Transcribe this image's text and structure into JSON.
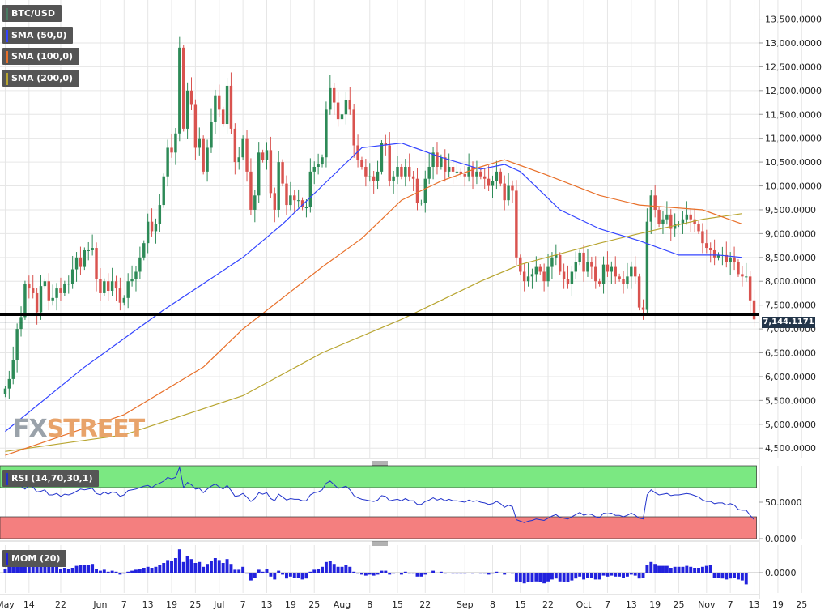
{
  "chart_data": {
    "type": "candlestick",
    "instrument": "BTC/USD",
    "price_axis": {
      "ticks": [
        "13,500.0000",
        "13,000.0000",
        "12,500.0000",
        "12,000.0000",
        "11,500.0000",
        "11,000.0000",
        "10,500.0000",
        "10,000.0000",
        "9,500.0000",
        "9,000.0000",
        "8,500.0000",
        "8,000.0000",
        "7,500.0000",
        "7,000.0000",
        "6,500.0000",
        "6,000.0000",
        "5,500.0000",
        "5,000.0000",
        "4,500.0000"
      ],
      "ylim": [
        4300,
        13900
      ]
    },
    "x_axis": {
      "start_date": "2019-05-08",
      "ticks": [
        {
          "label": "May",
          "date": "2019-05-08"
        },
        {
          "label": "14",
          "date": "2019-05-14"
        },
        {
          "label": "22",
          "date": "2019-05-22"
        },
        {
          "label": "Jun",
          "date": "2019-06-01"
        },
        {
          "label": "7",
          "date": "2019-06-07"
        },
        {
          "label": "13",
          "date": "2019-06-13"
        },
        {
          "label": "19",
          "date": "2019-06-19"
        },
        {
          "label": "25",
          "date": "2019-06-25"
        },
        {
          "label": "Jul",
          "date": "2019-07-01"
        },
        {
          "label": "7",
          "date": "2019-07-07"
        },
        {
          "label": "13",
          "date": "2019-07-13"
        },
        {
          "label": "19",
          "date": "2019-07-19"
        },
        {
          "label": "25",
          "date": "2019-07-25"
        },
        {
          "label": "Aug",
          "date": "2019-08-01"
        },
        {
          "label": "8",
          "date": "2019-08-08"
        },
        {
          "label": "15",
          "date": "2019-08-15"
        },
        {
          "label": "22",
          "date": "2019-08-22"
        },
        {
          "label": "Sep",
          "date": "2019-09-01"
        },
        {
          "label": "8",
          "date": "2019-09-08"
        },
        {
          "label": "15",
          "date": "2019-09-15"
        },
        {
          "label": "22",
          "date": "2019-09-22"
        },
        {
          "label": "Oct",
          "date": "2019-10-01"
        },
        {
          "label": "7",
          "date": "2019-10-07"
        },
        {
          "label": "13",
          "date": "2019-10-13"
        },
        {
          "label": "19",
          "date": "2019-10-19"
        },
        {
          "label": "25",
          "date": "2019-10-25"
        },
        {
          "label": "Nov",
          "date": "2019-11-01"
        },
        {
          "label": "7",
          "date": "2019-11-07"
        },
        {
          "label": "13",
          "date": "2019-11-13"
        },
        {
          "label": "19",
          "date": "2019-11-19"
        },
        {
          "label": "25",
          "date": "2019-11-25"
        }
      ]
    },
    "closes": [
      5750,
      5950,
      6350,
      7000,
      7250,
      7950,
      7850,
      7750,
      7350,
      7900,
      8000,
      7600,
      7650,
      7850,
      7750,
      7950,
      7950,
      8250,
      8500,
      8300,
      8650,
      8650,
      8700,
      8050,
      7750,
      8000,
      7800,
      8000,
      7850,
      7550,
      7650,
      8000,
      8050,
      8200,
      8500,
      8800,
      9250,
      9050,
      9200,
      9600,
      10200,
      10800,
      10700,
      11100,
      12900,
      11200,
      12000,
      11700,
      10800,
      11000,
      10300,
      10800,
      11350,
      11900,
      11600,
      11300,
      12100,
      11200,
      10500,
      10600,
      11000,
      10300,
      9500,
      9800,
      10700,
      10550,
      10750,
      9850,
      9500,
      10500,
      10050,
      9600,
      9800,
      9700,
      9700,
      9550,
      9550,
      10300,
      10400,
      10450,
      10600,
      11600,
      12050,
      11750,
      11400,
      11500,
      11800,
      11600,
      10850,
      10550,
      10400,
      10200,
      10200,
      10100,
      10300,
      10900,
      10850,
      10100,
      10200,
      10400,
      10200,
      10400,
      10200,
      10150,
      9650,
      9650,
      10150,
      10400,
      10700,
      10400,
      10600,
      10300,
      10400,
      10300,
      10300,
      10250,
      10200,
      10400,
      10200,
      10300,
      10200,
      10150,
      10000,
      10100,
      10300,
      10050,
      9700,
      10000,
      9900,
      8500,
      8200,
      8000,
      8100,
      8150,
      8300,
      8200,
      8000,
      8300,
      8500,
      8550,
      8200,
      8050,
      7950,
      8200,
      8400,
      8600,
      8200,
      8400,
      8300,
      8000,
      7950,
      8350,
      8200,
      8300,
      8100,
      8050,
      7950,
      8100,
      8300,
      8100,
      7450,
      7400,
      9250,
      9800,
      9500,
      9200,
      9300,
      9400,
      9100,
      9200,
      9200,
      9300,
      9400,
      9300,
      9200,
      9050,
      8800,
      8700,
      8650,
      8500,
      8550,
      8550,
      8400,
      8500,
      8400,
      8150,
      8100,
      8100,
      7600,
      7200
    ],
    "current_price": 7144.1171,
    "horizontal_line": 7300,
    "sma50": [
      [
        0,
        4850
      ],
      [
        20,
        6200
      ],
      [
        40,
        7400
      ],
      [
        60,
        8500
      ],
      [
        70,
        9200
      ],
      [
        80,
        10000
      ],
      [
        90,
        10800
      ],
      [
        100,
        10900
      ],
      [
        110,
        10600
      ],
      [
        120,
        10350
      ],
      [
        126,
        10450
      ],
      [
        130,
        10300
      ],
      [
        140,
        9500
      ],
      [
        150,
        9100
      ],
      [
        160,
        8850
      ],
      [
        170,
        8550
      ],
      [
        180,
        8550
      ],
      [
        186,
        8500
      ]
    ],
    "sma100": [
      [
        0,
        4350
      ],
      [
        30,
        5200
      ],
      [
        50,
        6200
      ],
      [
        60,
        7000
      ],
      [
        80,
        8300
      ],
      [
        90,
        8900
      ],
      [
        100,
        9700
      ],
      [
        110,
        10100
      ],
      [
        120,
        10400
      ],
      [
        126,
        10550
      ],
      [
        136,
        10250
      ],
      [
        150,
        9800
      ],
      [
        160,
        9600
      ],
      [
        176,
        9500
      ],
      [
        186,
        9200
      ]
    ],
    "sma200": [
      [
        0,
        4430
      ],
      [
        30,
        4780
      ],
      [
        60,
        5600
      ],
      [
        80,
        6500
      ],
      [
        100,
        7200
      ],
      [
        110,
        7600
      ],
      [
        120,
        8000
      ],
      [
        130,
        8350
      ],
      [
        150,
        8800
      ],
      [
        160,
        9000
      ],
      [
        176,
        9300
      ],
      [
        186,
        9420
      ]
    ],
    "rsi": {
      "levels": [
        30,
        70
      ],
      "ticks": [
        "50.0000",
        "0.0000"
      ],
      "values": [
        76,
        77,
        73,
        80,
        72,
        68,
        73,
        71,
        64,
        65,
        67,
        60,
        60,
        62,
        58,
        61,
        60,
        62,
        65,
        68,
        67,
        68,
        69,
        62,
        60,
        64,
        61,
        64,
        63,
        58,
        60,
        66,
        67,
        68,
        70,
        72,
        73,
        70,
        74,
        76,
        79,
        84,
        82,
        84,
        98,
        70,
        77,
        74,
        68,
        69,
        63,
        68,
        72,
        75,
        71,
        68,
        73,
        66,
        58,
        59,
        62,
        57,
        51,
        55,
        63,
        61,
        63,
        55,
        52,
        61,
        57,
        53,
        55,
        54,
        54,
        52,
        52,
        60,
        63,
        64,
        67,
        76,
        79,
        74,
        69,
        70,
        72,
        67,
        59,
        56,
        54,
        53,
        52,
        51,
        53,
        59,
        58,
        52,
        53,
        54,
        52,
        55,
        52,
        52,
        47,
        47,
        51,
        53,
        56,
        53,
        55,
        52,
        54,
        52,
        52,
        51,
        50,
        53,
        51,
        52,
        50,
        49,
        47,
        48,
        51,
        48,
        43,
        46,
        44,
        26,
        24,
        22,
        24,
        25,
        27,
        26,
        25,
        28,
        31,
        33,
        29,
        28,
        27,
        30,
        33,
        36,
        32,
        34,
        33,
        30,
        29,
        35,
        34,
        35,
        32,
        32,
        30,
        32,
        35,
        32,
        28,
        27,
        60,
        67,
        63,
        60,
        61,
        62,
        59,
        60,
        60,
        61,
        62,
        61,
        59,
        57,
        53,
        51,
        51,
        48,
        49,
        49,
        46,
        48,
        46,
        40,
        39,
        39,
        32,
        26
      ]
    },
    "mom": {
      "ticks": [
        "0.0000"
      ],
      "values": [
        0.4,
        0.6,
        0.8,
        1.0,
        1.2,
        1.3,
        1.1,
        1.1,
        0.9,
        1.0,
        1.0,
        0.7,
        0.6,
        0.6,
        0.4,
        0.5,
        0.4,
        0.5,
        0.7,
        0.8,
        0.8,
        0.8,
        0.9,
        0.4,
        0.2,
        0.3,
        0.1,
        0.2,
        0.1,
        -0.2,
        -0.1,
        0.1,
        0.2,
        0.3,
        0.4,
        0.5,
        0.6,
        0.5,
        0.6,
        0.8,
        1.0,
        1.3,
        1.2,
        1.5,
        2.4,
        1.1,
        1.7,
        1.4,
        1.0,
        1.1,
        0.6,
        0.9,
        1.2,
        1.5,
        1.3,
        1.0,
        1.4,
        0.9,
        0.3,
        0.3,
        0.6,
        -0.1,
        -0.8,
        -0.5,
        0.3,
        0.1,
        0.4,
        -0.4,
        -0.7,
        0.2,
        -0.2,
        -0.6,
        -0.4,
        -0.5,
        -0.5,
        -0.7,
        -0.6,
        0.1,
        0.3,
        0.4,
        0.6,
        1.1,
        1.2,
        0.9,
        0.6,
        0.6,
        0.8,
        0.6,
        0.1,
        -0.1,
        -0.2,
        -0.3,
        -0.2,
        -0.3,
        -0.2,
        0.2,
        0.2,
        -0.2,
        -0.1,
        0.0,
        -0.2,
        0.1,
        -0.1,
        -0.1,
        -0.4,
        -0.4,
        -0.2,
        0.0,
        0.2,
        0.0,
        0.1,
        -0.1,
        0.0,
        -0.1,
        -0.1,
        -0.1,
        -0.1,
        0.0,
        -0.1,
        0.0,
        -0.1,
        -0.1,
        -0.2,
        -0.1,
        0.1,
        0.0,
        -0.2,
        0.0,
        -0.1,
        -0.9,
        -1.0,
        -1.1,
        -1.0,
        -1.0,
        -0.9,
        -1.0,
        -1.1,
        -0.9,
        -0.7,
        -0.6,
        -0.9,
        -1.0,
        -1.0,
        -0.8,
        -0.6,
        -0.4,
        -0.7,
        -0.5,
        -0.5,
        -0.7,
        -0.7,
        -0.3,
        -0.4,
        -0.3,
        -0.4,
        -0.4,
        -0.5,
        -0.4,
        -0.2,
        -0.3,
        -0.6,
        -0.5,
        0.8,
        1.1,
        0.9,
        0.7,
        0.7,
        0.7,
        0.5,
        0.6,
        0.6,
        0.6,
        0.7,
        0.6,
        0.5,
        0.5,
        0.6,
        0.7,
        0.8,
        -0.5,
        -0.5,
        -0.6,
        -0.7,
        -0.6,
        -0.5,
        -0.7,
        -0.8,
        -1.2
      ]
    }
  },
  "legends": {
    "main": [
      {
        "label": "BTC/USD",
        "color": "#4a7a62"
      },
      {
        "label": "SMA (50,0)",
        "color": "#3344ff"
      },
      {
        "label": "SMA (100,0)",
        "color": "#e8702a"
      },
      {
        "label": "SMA (200,0)",
        "color": "#b8a530"
      }
    ],
    "rsi": "RSI (14,70,30,1)",
    "mom": "MOM (20)"
  },
  "price_label": "7,144.1171",
  "watermark": {
    "fx": "FX",
    "street": "STREET"
  },
  "colors": {
    "up": "#2d8a57",
    "down": "#d9534f",
    "sma50": "#3344ff",
    "sma100": "#e8702a",
    "sma200": "#b8a530",
    "rsi_line": "#2233cc",
    "rsi_over": "#7be882",
    "rsi_under": "#f47f7f",
    "mom": "#2222dd",
    "grid": "#e6e6e6"
  }
}
